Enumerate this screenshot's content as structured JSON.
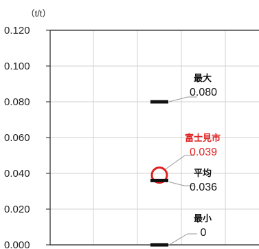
{
  "chart_data": {
    "type": "scatter",
    "unit": "（t/t）",
    "ylim": [
      0,
      0.12
    ],
    "yticks": [
      "0.000",
      "0.020",
      "0.040",
      "0.060",
      "0.080",
      "0.100",
      "0.120"
    ],
    "grid": true,
    "colors": {
      "marker": "#111111",
      "highlight": "#e02020",
      "grid": "#d0d0d0",
      "leader": "#999999"
    },
    "series": [
      {
        "key": "max",
        "label": "最大",
        "value_label": "0.080",
        "y": 0.08,
        "marker": "bar"
      },
      {
        "key": "city",
        "label": "富士見市",
        "value_label": "0.039",
        "y": 0.039,
        "marker": "circle",
        "highlight": true
      },
      {
        "key": "avg",
        "label": "平均",
        "value_label": "0.036",
        "y": 0.036,
        "marker": "bar"
      },
      {
        "key": "min",
        "label": "最小",
        "value_label": "0",
        "y": 0.0,
        "marker": "bar"
      }
    ]
  }
}
